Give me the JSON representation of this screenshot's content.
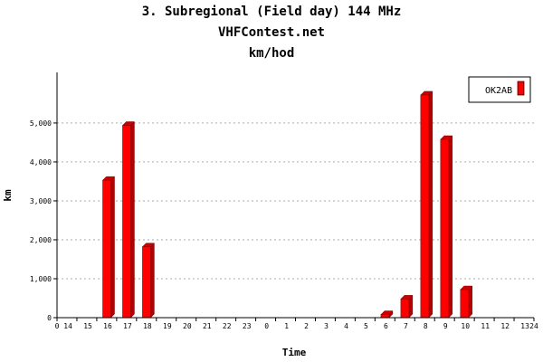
{
  "header": {
    "title_line1": "3. Subregional (Field day) 144 MHz",
    "title_line2": "VHFContest.net",
    "title_line3": "km/hod"
  },
  "chart_data": {
    "type": "bar",
    "title": "3. Subregional (Field day) 144 MHz",
    "subtitle": "VHFContest.net",
    "unit_label": "km/hod",
    "xlabel": "Time",
    "ylabel": "km",
    "categories": [
      "14",
      "15",
      "16",
      "17",
      "18",
      "19",
      "20",
      "21",
      "22",
      "23",
      "0",
      "1",
      "2",
      "3",
      "4",
      "5",
      "6",
      "7",
      "8",
      "9",
      "10",
      "11",
      "12",
      "13"
    ],
    "axis_end_labels": [
      "0",
      "24"
    ],
    "series": [
      {
        "name": "OK2AB",
        "values": [
          0,
          0,
          3530,
          4940,
          1820,
          0,
          0,
          0,
          0,
          0,
          0,
          0,
          0,
          0,
          0,
          0,
          80,
          480,
          5720,
          4580,
          720,
          0,
          0,
          0
        ]
      }
    ],
    "yticks": [
      "0",
      "1,000",
      "2,000",
      "3,000",
      "4,000",
      "5,000"
    ],
    "ylim": [
      0,
      6300
    ],
    "grid": true,
    "legend_position": "top-right",
    "colors": {
      "bar_front": "#ff0000",
      "bar_side": "#b40000",
      "bar_top": "#cc0000"
    }
  }
}
